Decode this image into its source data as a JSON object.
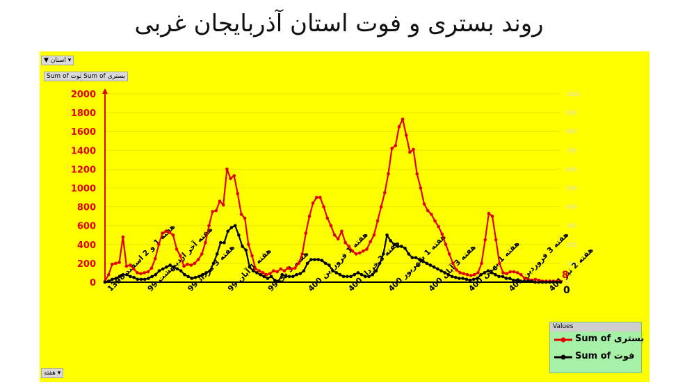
{
  "title": "روند بستری و فوت استان آذربایجان غربی",
  "filter_buttons": {
    "province": "استان",
    "sum_hosp": "Sum of بستری",
    "sum_death": "Sum of فوت",
    "week": "هفته"
  },
  "legend": {
    "header": "Values",
    "entries": [
      "Sum of بستری",
      "Sum of فوت"
    ]
  },
  "colors": {
    "hospitalized": "#e00000",
    "deaths": "#000000",
    "background": "#ffff00",
    "left_axis": "#e00000",
    "right_axis": "#d9d9d9"
  },
  "chart_data": {
    "type": "line",
    "title": "روند بستری و فوت استان آذربایجان غربی",
    "x_tick_labels": [
      "هفته 1 و 2 اسفند 1398",
      "هفته آخر اردیبهشت 99",
      "هفته 3 مرداد 99",
      "هفته 1 آبان 99",
      "هفته 3 دی 99",
      "هفته 1 فروردین 400",
      "هفته 3 خرداد 400",
      "هفته 1 شهریور 400",
      "هفته 3 آبان 400",
      "هفته 1 بهمن 400",
      "هفته 3 فروردین 401",
      "هفته 2 تیر 401"
    ],
    "y_left": {
      "min": 0,
      "max": 2000,
      "step": 200,
      "ticks": [
        0,
        200,
        400,
        600,
        800,
        1000,
        1200,
        1400,
        1600,
        1800,
        2000
      ]
    },
    "y_right": {
      "min": 0,
      "max": 1000,
      "step": 100,
      "ticks": [
        0,
        100,
        200,
        300,
        400,
        500,
        600,
        700,
        800,
        900,
        1000
      ]
    },
    "end_labels": {
      "hospitalized": "8",
      "deaths": "0"
    },
    "series": [
      {
        "name": "Sum of بستری",
        "axis": "left",
        "values": [
          10,
          80,
          190,
          200,
          210,
          480,
          170,
          180,
          140,
          100,
          90,
          100,
          110,
          150,
          250,
          400,
          520,
          540,
          530,
          500,
          350,
          280,
          170,
          190,
          180,
          200,
          240,
          300,
          420,
          600,
          750,
          760,
          860,
          820,
          1200,
          1100,
          1130,
          940,
          720,
          680,
          400,
          280,
          140,
          120,
          100,
          80,
          90,
          120,
          110,
          140,
          120,
          150,
          140,
          150,
          200,
          300,
          520,
          700,
          840,
          900,
          900,
          800,
          680,
          600,
          500,
          460,
          540,
          420,
          380,
          330,
          300,
          310,
          330,
          350,
          430,
          500,
          650,
          800,
          950,
          1150,
          1420,
          1450,
          1650,
          1730,
          1560,
          1380,
          1410,
          1150,
          1000,
          830,
          760,
          720,
          650,
          590,
          510,
          400,
          300,
          200,
          130,
          100,
          90,
          80,
          70,
          80,
          100,
          200,
          450,
          730,
          700,
          450,
          200,
          100,
          90,
          110,
          110,
          100,
          80,
          40,
          30,
          20,
          30,
          20,
          10,
          10,
          10,
          10,
          10,
          8
        ]
      },
      {
        "name": "Sum of فوت",
        "axis": "right",
        "values": [
          0,
          5,
          15,
          20,
          30,
          40,
          40,
          30,
          25,
          15,
          15,
          15,
          20,
          30,
          40,
          60,
          70,
          80,
          90,
          80,
          70,
          60,
          40,
          30,
          20,
          25,
          30,
          40,
          50,
          60,
          100,
          150,
          210,
          210,
          270,
          290,
          300,
          250,
          190,
          170,
          80,
          60,
          50,
          40,
          30,
          20,
          30,
          10,
          5,
          40,
          30,
          30,
          30,
          40,
          45,
          60,
          100,
          120,
          120,
          120,
          115,
          100,
          90,
          60,
          50,
          40,
          30,
          30,
          30,
          40,
          50,
          40,
          30,
          30,
          40,
          60,
          100,
          150,
          250,
          220,
          200,
          190,
          190,
          180,
          150,
          130,
          130,
          120,
          110,
          100,
          90,
          80,
          70,
          60,
          50,
          40,
          30,
          25,
          20,
          20,
          15,
          10,
          15,
          20,
          40,
          50,
          60,
          50,
          40,
          30,
          30,
          20,
          20,
          10,
          10,
          5,
          5,
          5,
          5,
          0,
          0,
          0,
          0,
          0,
          0,
          0,
          0
        ]
      }
    ]
  }
}
